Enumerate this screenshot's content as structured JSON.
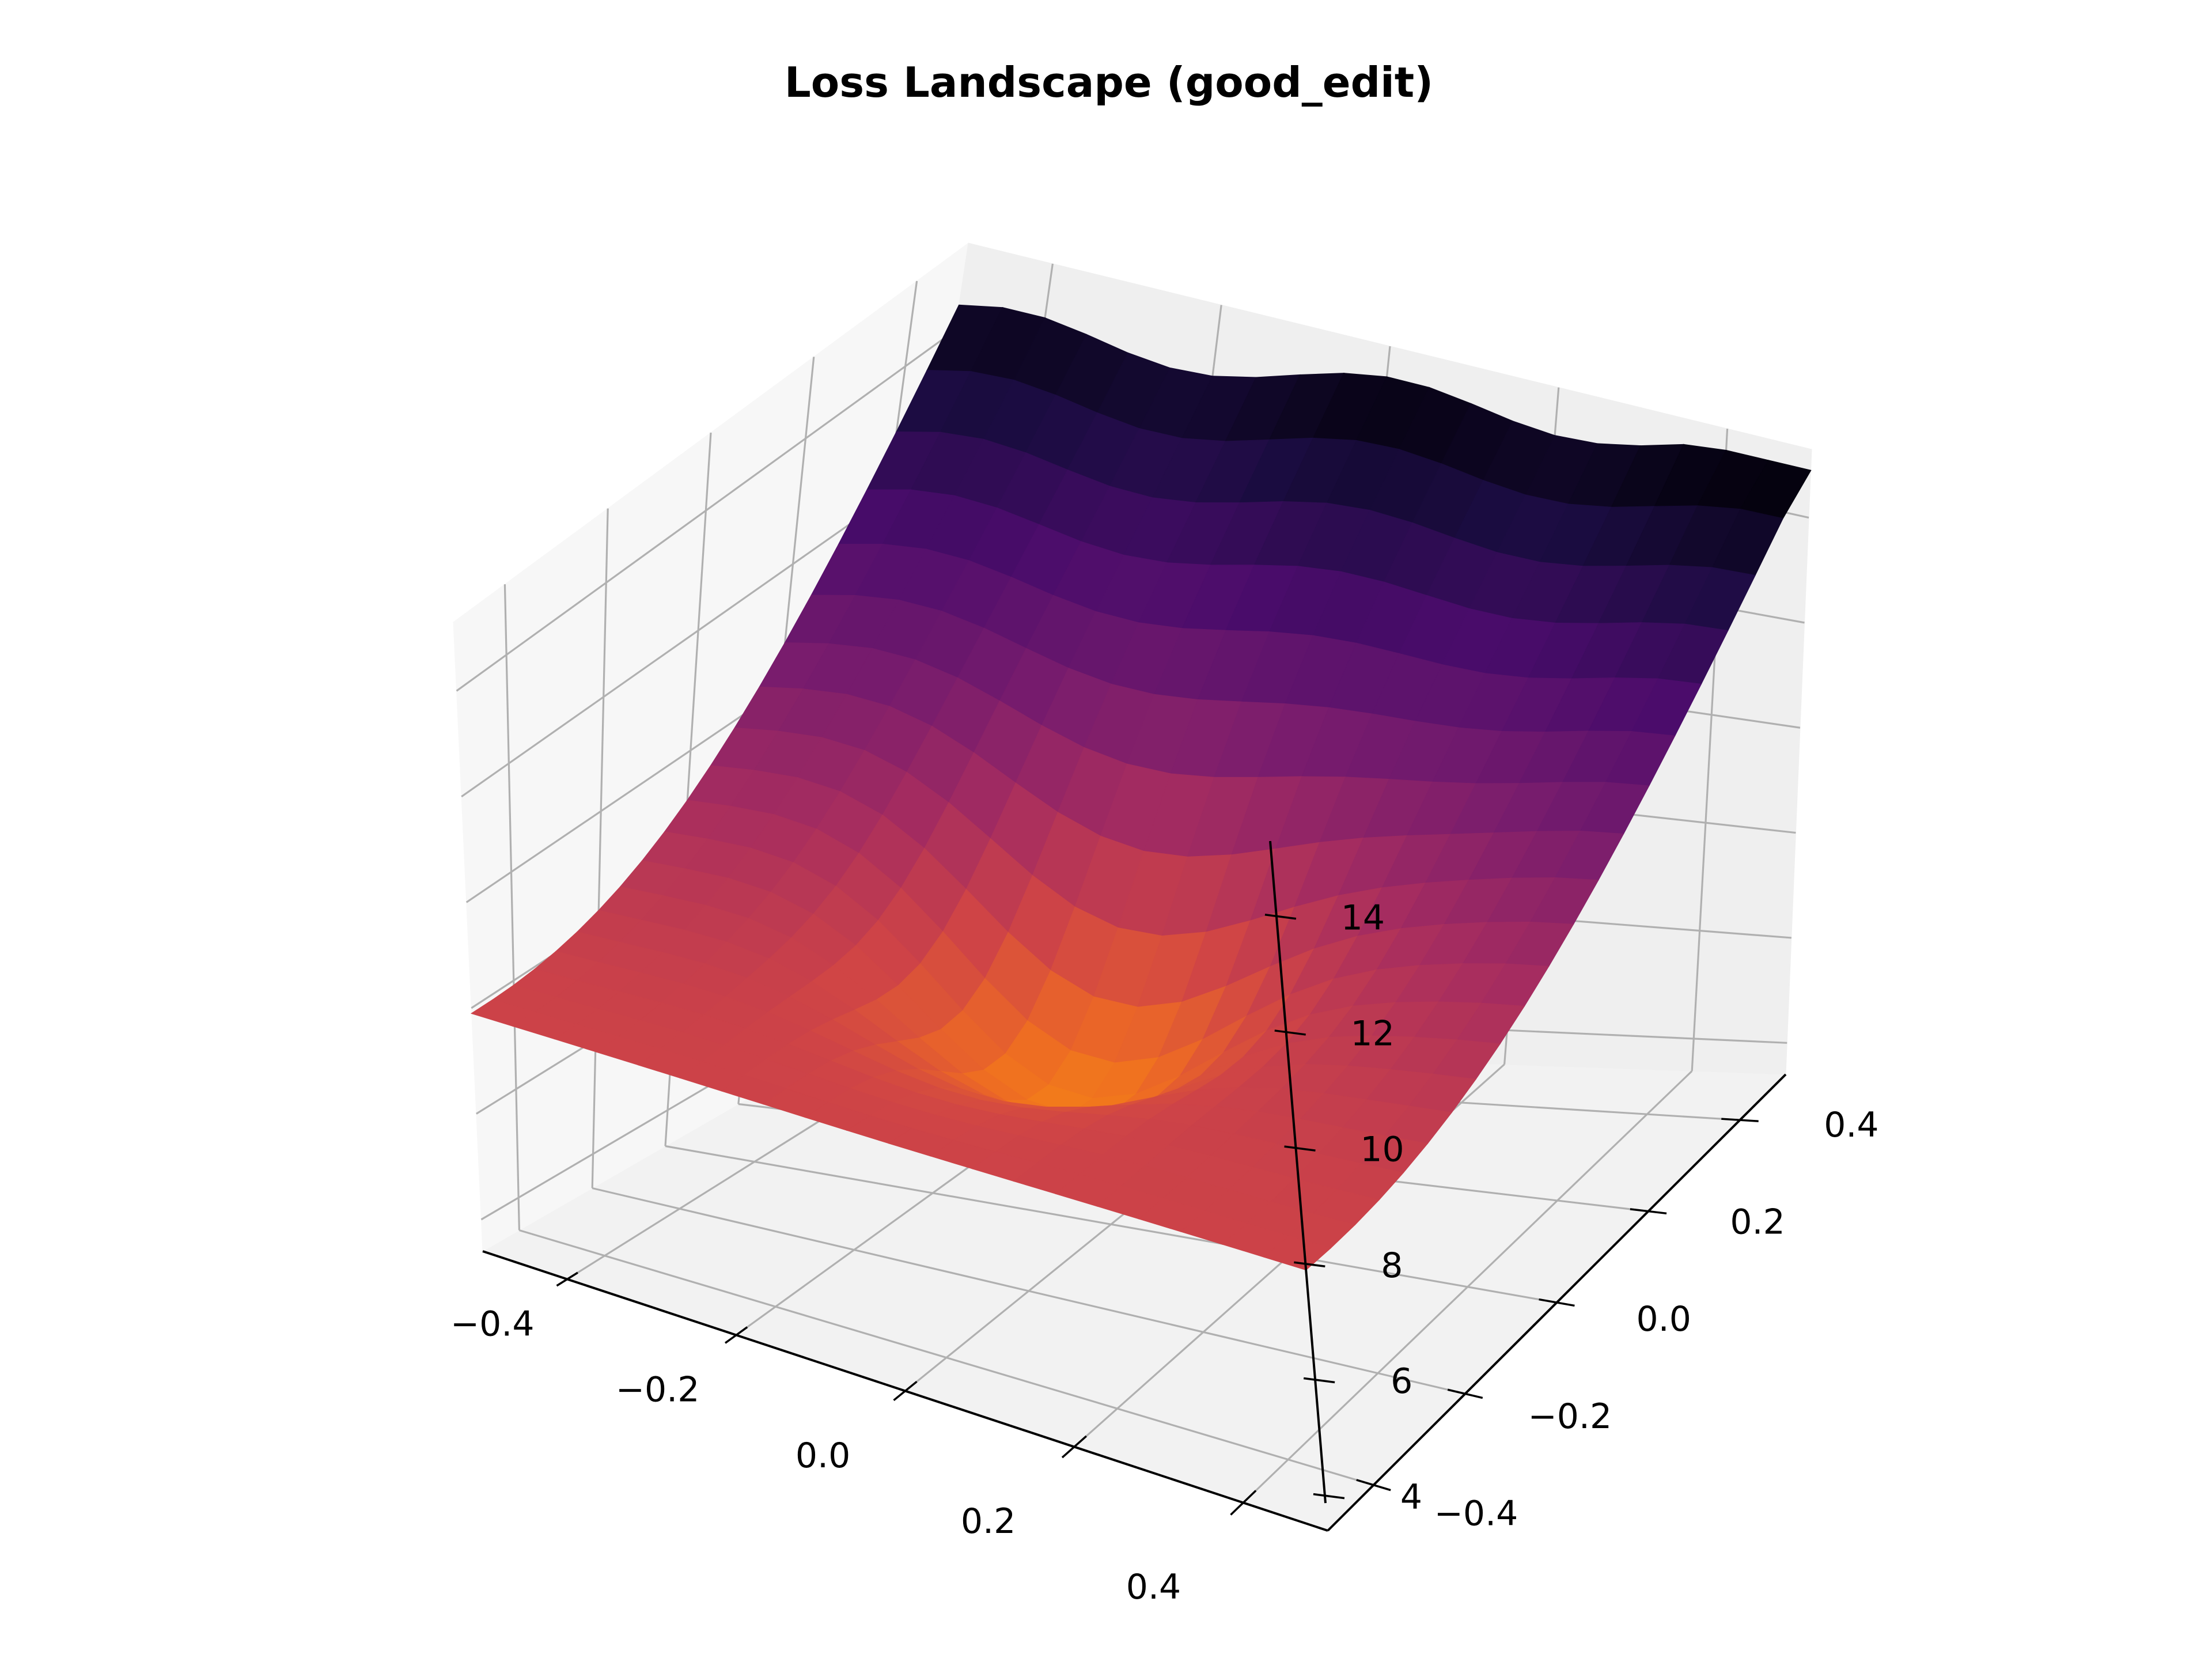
{
  "chart_data": {
    "type": "surface",
    "title": "Loss Landscape (good_edit)",
    "colormap": "inferno",
    "xlabel": "",
    "ylabel": "",
    "zlabel": "",
    "grid": true,
    "x_ticks": [
      "−0.4",
      "−0.2",
      "0.0",
      "0.2",
      "0.4"
    ],
    "y_ticks": [
      "−0.4",
      "−0.2",
      "0.0",
      "0.2",
      "0.4"
    ],
    "z_ticks": [
      "4",
      "6",
      "8",
      "10",
      "12",
      "14"
    ],
    "xlim": [
      -0.5,
      0.5
    ],
    "ylim": [
      -0.5,
      0.5
    ],
    "zlim": [
      3.4,
      15.3
    ],
    "grid_size": 21,
    "z_min": 3.6,
    "z_max": 14.9,
    "z_corners": {
      "x_min_y_min": 7.9,
      "x_max_y_min": 7.9,
      "x_min_y_max": 14.2,
      "x_max_y_max": 14.9
    }
  }
}
